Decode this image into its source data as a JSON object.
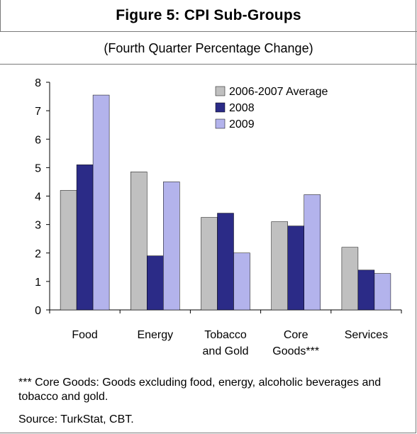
{
  "figure": {
    "title": "Figure 5: CPI Sub-Groups",
    "subtitle": "(Fourth Quarter Percentage Change)",
    "footnote": "*** Core Goods: Goods excluding food, energy, alcoholic beverages and tobacco and gold.",
    "source": "Source: TurkStat, CBT."
  },
  "chart_data": {
    "type": "bar",
    "title": "",
    "xlabel": "",
    "ylabel": "",
    "ylim": [
      0,
      8
    ],
    "yticks": [
      "0",
      "1",
      "2",
      "3",
      "4",
      "5",
      "6",
      "7",
      "8"
    ],
    "grid": false,
    "legend_position": "top-right",
    "categories": [
      [
        "Food"
      ],
      [
        "Energy"
      ],
      [
        "Tobacco",
        "and Gold"
      ],
      [
        "Core",
        "Goods***"
      ],
      [
        "Services"
      ]
    ],
    "series": [
      {
        "name": "2006-2007 Average",
        "color": "#c0c0c0",
        "values": [
          4.2,
          4.85,
          3.25,
          3.1,
          2.2
        ]
      },
      {
        "name": "2008",
        "color": "#2b2b87",
        "values": [
          5.1,
          1.9,
          3.4,
          2.95,
          1.4
        ]
      },
      {
        "name": "2009",
        "color": "#b3b3ec",
        "values": [
          7.55,
          4.5,
          2.0,
          4.05,
          1.28
        ]
      }
    ]
  }
}
